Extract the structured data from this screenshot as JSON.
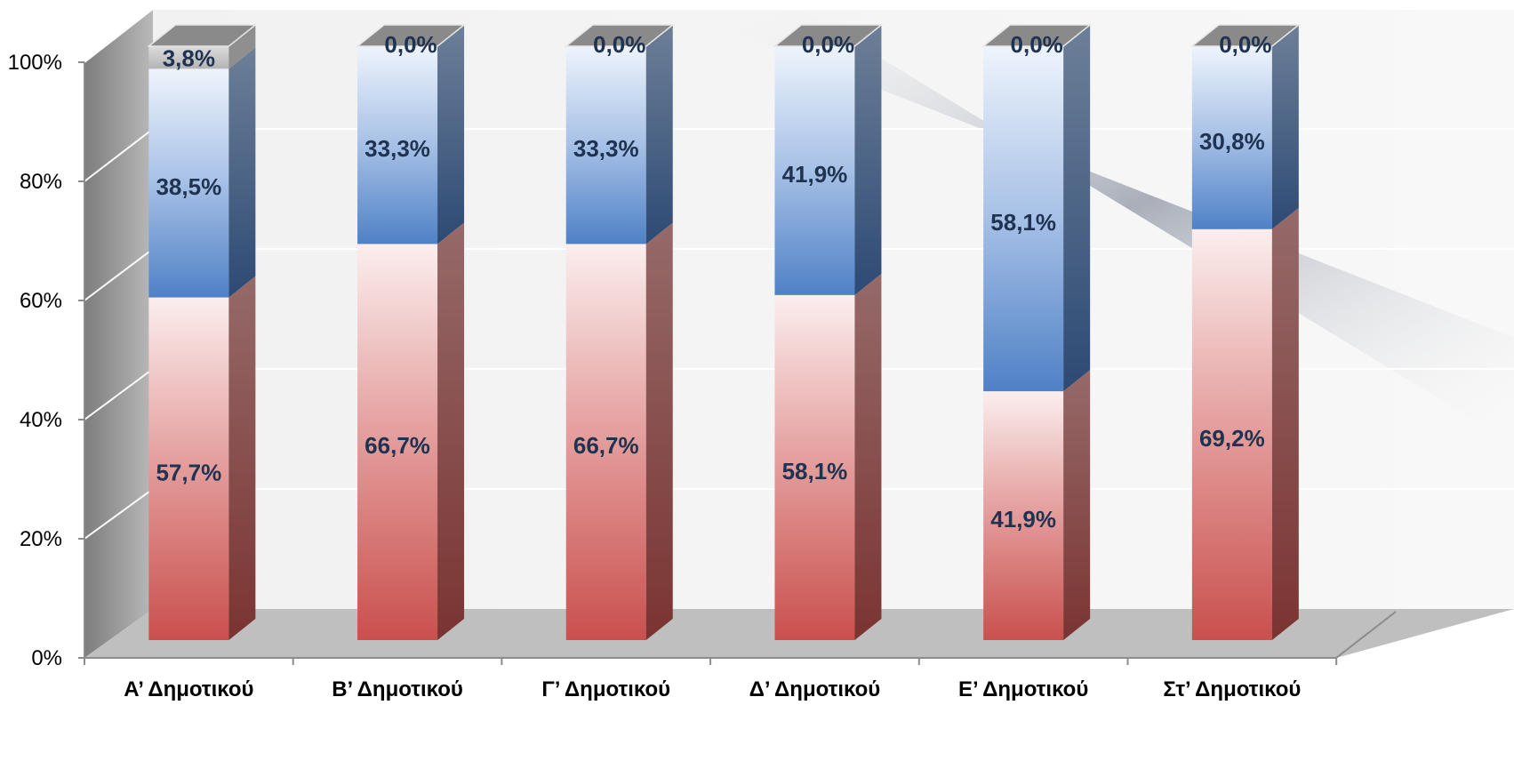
{
  "chart_data": {
    "type": "bar",
    "stacked": true,
    "normalized": true,
    "three_d": true,
    "title": "",
    "xlabel": "",
    "ylabel": "",
    "ylim": [
      0,
      100
    ],
    "y_ticks": [
      "0%",
      "20%",
      "40%",
      "60%",
      "80%",
      "100%"
    ],
    "grid": true,
    "legend": "none",
    "categories": [
      "Α’ Δημοτικού",
      "Β’ Δημοτικού",
      "Γ’ Δημοτικού",
      "Δ’ Δημοτικού",
      "Ε’ Δημοτικού",
      "Στ’ Δημοτικού"
    ],
    "series": [
      {
        "color": "#c0504d",
        "values": [
          57.7,
          66.7,
          66.7,
          58.1,
          41.9,
          69.2
        ],
        "labels": [
          "57,7%",
          "66,7%",
          "66,7%",
          "58,1%",
          "41,9%",
          "69,2%"
        ]
      },
      {
        "color": "#4f81bd",
        "values": [
          38.5,
          33.3,
          33.3,
          41.9,
          58.1,
          30.8
        ],
        "labels": [
          "38,5%",
          "33,3%",
          "33,3%",
          "41,9%",
          "58,1%",
          "30,8%"
        ]
      },
      {
        "color": "#a6a6a6",
        "values": [
          3.8,
          0.0,
          0.0,
          0.0,
          0.0,
          0.0
        ],
        "labels": [
          "3,8%",
          "0,0%",
          "0,0%",
          "0,0%",
          "0,0%",
          "0,0%"
        ]
      }
    ]
  }
}
